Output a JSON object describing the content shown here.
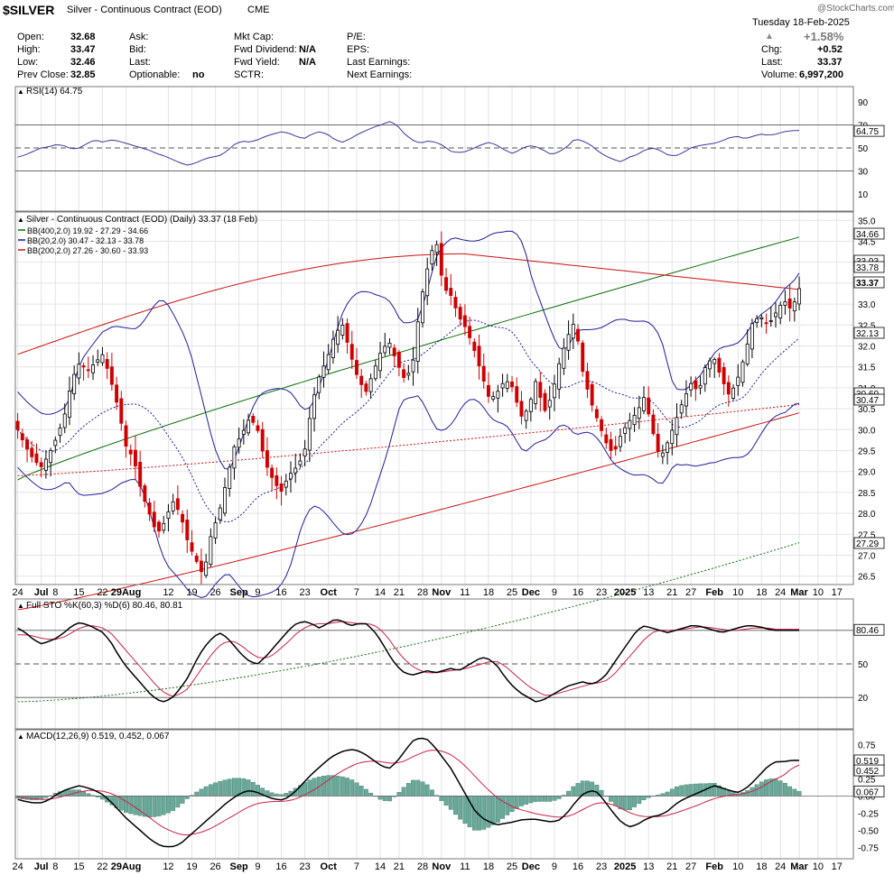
{
  "header": {
    "symbol": "$SILVER",
    "name": "Silver - Continuous Contract (EOD)",
    "exchange": "CME",
    "source": "@StockCharts.com",
    "date": "Tuesday 18-Feb-2025",
    "pct_change": "+1.58%",
    "quote": {
      "open_label": "Open:",
      "open": "32.68",
      "high_label": "High:",
      "high": "33.47",
      "low_label": "Low:",
      "low": "32.46",
      "prevclose_label": "Prev Close:",
      "prevclose": "32.85",
      "ask_label": "Ask:",
      "bid_label": "Bid:",
      "last_label": "Last:",
      "optionable_label": "Optionable:",
      "optionable": "no",
      "mktcap_label": "Mkt Cap:",
      "fwddiv_label": "Fwd Dividend:",
      "fwddiv": "N/A",
      "fwdyield_label": "Fwd Yield:",
      "fwdyield": "N/A",
      "sctr_label": "SCTR:",
      "pe_label": "P/E:",
      "eps_label": "EPS:",
      "lastearn_label": "Last Earnings:",
      "nextearn_label": "Next Earnings:",
      "chg_label": "Chg:",
      "chg": "+0.52",
      "last2_label": "Last:",
      "last2": "33.37",
      "volume_label": "Volume:",
      "volume": "6,997,200"
    }
  },
  "colors": {
    "up": "#000000",
    "down": "#d10000",
    "bb400": "#0a6e0a",
    "bb20": "#1f1f99",
    "bb200": "#cc1111",
    "stoK": "#000000",
    "stoD": "#cc2244",
    "macd": "#000000",
    "signal": "#cc2244",
    "hist": "#6aa99a",
    "grid": "#e4e4ea",
    "dash": "#555555"
  },
  "chart_data": [
    {
      "type": "line",
      "title": "RSI(14) 64.75",
      "ylim": [
        0,
        100
      ],
      "yticks": [
        "10",
        "30",
        "50",
        "70",
        "90"
      ],
      "reference_lines": [
        30,
        50,
        70
      ],
      "current_label": "64.75",
      "series": [
        {
          "name": "RSI(14)",
          "values": [
            42,
            44,
            47,
            50,
            51,
            53,
            52,
            49,
            50,
            54,
            57,
            55,
            57,
            56,
            54,
            52,
            50,
            48,
            45,
            43,
            40,
            37,
            35,
            37,
            40,
            42,
            43,
            47,
            53,
            56,
            55,
            57,
            60,
            62,
            64,
            63,
            60,
            58,
            62,
            64,
            62,
            57,
            55,
            58,
            62,
            65,
            68,
            70,
            73,
            70,
            62,
            57,
            54,
            56,
            55,
            52,
            47,
            46,
            47,
            50,
            53,
            55,
            52,
            48,
            45,
            49,
            52,
            51,
            48,
            44,
            47,
            51,
            58,
            56,
            53,
            47,
            43,
            40,
            38,
            42,
            44,
            48,
            50,
            48,
            44,
            43,
            46,
            50,
            52,
            53,
            54,
            56,
            59,
            60,
            58,
            60,
            62,
            61,
            62,
            64,
            65,
            65
          ]
        }
      ]
    },
    {
      "type": "candlestick",
      "title": "Silver - Continuous Contract (EOD) (Daily) 33.37 (18 Feb)",
      "ylim": [
        26.3,
        35.2
      ],
      "yticks": [
        "26.5",
        "27.0",
        "27.5",
        "28.0",
        "28.5",
        "29.0",
        "29.5",
        "30.0",
        "30.5",
        "31.0",
        "31.5",
        "32.0",
        "32.5",
        "33.0",
        "33.5",
        "34.0",
        "34.5",
        "35.0"
      ],
      "legend": [
        {
          "label": "BB(400,2.0) 19.92 - 27.29 - 34.66",
          "color": "#0a6e0a"
        },
        {
          "label": "BB(20,2.0) 30.47 - 32.13 - 33.78",
          "color": "#1f1f99"
        },
        {
          "label": "BB(200,2.0) 27.26 - 30.60 - 33.93",
          "color": "#cc1111"
        }
      ],
      "right_labels": [
        "34.66",
        "33.93",
        "33.78",
        "33.37",
        "32.13",
        "30.60",
        "30.47",
        "27.29"
      ],
      "close": [
        30.0,
        29.6,
        29.3,
        29.1,
        29.4,
        29.8,
        30.3,
        31.2,
        31.6,
        31.4,
        31.6,
        31.8,
        31.2,
        30.5,
        29.6,
        29.3,
        28.5,
        28.0,
        27.5,
        27.8,
        28.3,
        28.0,
        27.3,
        26.9,
        26.5,
        27.5,
        28.0,
        28.8,
        29.6,
        29.9,
        30.3,
        30.0,
        29.2,
        28.8,
        28.5,
        28.9,
        29.1,
        29.4,
        30.6,
        31.3,
        31.7,
        32.3,
        32.5,
        31.8,
        31.2,
        30.9,
        31.4,
        31.9,
        32.1,
        31.6,
        31.2,
        31.5,
        33.0,
        33.9,
        34.6,
        33.4,
        33.2,
        32.7,
        32.4,
        31.9,
        31.3,
        30.7,
        30.9,
        31.2,
        31.0,
        30.3,
        30.5,
        31.2,
        30.4,
        30.8,
        31.6,
        32.2,
        32.6,
        31.4,
        30.7,
        30.2,
        29.7,
        29.4,
        29.9,
        30.2,
        30.4,
        30.8,
        30.0,
        29.3,
        29.7,
        30.2,
        30.7,
        31.1,
        30.9,
        31.6,
        31.7,
        31.2,
        30.8,
        31.2,
        31.8,
        32.6,
        32.7,
        32.5,
        32.8,
        33.1,
        32.85,
        33.37
      ]
    },
    {
      "type": "line",
      "title": "Full STO %K(60,3) %D(6) 80.46, 80.81",
      "ylim": [
        0,
        100
      ],
      "yticks": [
        "20",
        "50",
        "80"
      ],
      "reference_lines": [
        20,
        50,
        80
      ],
      "right_labels": [
        "80.46"
      ],
      "series": [
        {
          "name": "%K",
          "values": [
            82,
            78,
            72,
            68,
            70,
            73,
            78,
            84,
            87,
            85,
            82,
            78,
            70,
            58,
            48,
            40,
            32,
            24,
            18,
            16,
            20,
            28,
            38,
            52,
            64,
            72,
            78,
            74,
            66,
            58,
            52,
            50,
            56,
            64,
            72,
            80,
            86,
            88,
            86,
            82,
            86,
            90,
            88,
            84,
            86,
            86,
            80,
            70,
            58,
            48,
            42,
            40,
            42,
            44,
            42,
            44,
            46,
            44,
            48,
            52,
            56,
            54,
            48,
            38,
            30,
            24,
            20,
            16,
            18,
            22,
            26,
            30,
            32,
            34,
            32,
            34,
            40,
            50,
            60,
            70,
            80,
            84,
            82,
            80,
            78,
            80,
            82,
            84,
            84,
            82,
            80,
            78,
            80,
            82,
            84,
            84,
            83,
            81,
            80,
            80,
            80,
            80
          ]
        },
        {
          "name": "%D",
          "values": [
            76,
            76,
            75,
            73,
            72,
            72,
            74,
            78,
            82,
            84,
            84,
            82,
            78,
            70,
            62,
            54,
            46,
            38,
            30,
            24,
            21,
            23,
            28,
            38,
            48,
            58,
            66,
            70,
            70,
            66,
            60,
            56,
            55,
            58,
            64,
            70,
            77,
            82,
            85,
            86,
            86,
            87,
            88,
            87,
            86,
            86,
            85,
            80,
            72,
            62,
            54,
            48,
            44,
            42,
            42,
            43,
            44,
            45,
            46,
            48,
            50,
            52,
            52,
            48,
            42,
            36,
            30,
            26,
            22,
            22,
            24,
            26,
            28,
            30,
            32,
            33,
            35,
            40,
            48,
            56,
            64,
            72,
            78,
            80,
            80,
            80,
            81,
            82,
            83,
            83,
            82,
            81,
            80,
            80,
            81,
            82,
            82,
            82,
            81,
            81,
            81,
            81
          ]
        }
      ]
    },
    {
      "type": "line",
      "title": "MACD(12,26,9) 0.519, 0.452, 0.067",
      "ylim": [
        -0.85,
        0.9
      ],
      "yticks": [
        "-0.75",
        "-0.50",
        "-0.25",
        "0.00",
        "0.25",
        "0.50",
        "0.75"
      ],
      "right_labels": [
        "0.519",
        "0.452",
        "0.067"
      ],
      "series": [
        {
          "name": "MACD",
          "values": [
            -0.05,
            -0.08,
            -0.1,
            -0.1,
            -0.06,
            0.02,
            0.08,
            0.12,
            0.15,
            0.12,
            0.08,
            0.02,
            -0.08,
            -0.2,
            -0.32,
            -0.42,
            -0.52,
            -0.62,
            -0.7,
            -0.74,
            -0.74,
            -0.7,
            -0.6,
            -0.5,
            -0.4,
            -0.3,
            -0.2,
            -0.1,
            -0.02,
            0.05,
            0.08,
            0.05,
            0.0,
            -0.04,
            -0.06,
            -0.02,
            0.08,
            0.2,
            0.32,
            0.42,
            0.52,
            0.6,
            0.65,
            0.68,
            0.66,
            0.6,
            0.52,
            0.44,
            0.4,
            0.5,
            0.65,
            0.8,
            0.85,
            0.82,
            0.7,
            0.55,
            0.4,
            0.2,
            0.0,
            -0.2,
            -0.32,
            -0.38,
            -0.42,
            -0.4,
            -0.38,
            -0.35,
            -0.34,
            -0.34,
            -0.36,
            -0.38,
            -0.35,
            -0.25,
            -0.1,
            0.02,
            0.08,
            0.05,
            -0.1,
            -0.25,
            -0.38,
            -0.45,
            -0.42,
            -0.35,
            -0.3,
            -0.28,
            -0.22,
            -0.12,
            -0.05,
            0.0,
            0.05,
            0.1,
            0.15,
            0.12,
            0.08,
            0.05,
            0.1,
            0.2,
            0.32,
            0.44,
            0.5,
            0.5,
            0.52,
            0.519
          ]
        },
        {
          "name": "Signal",
          "values": [
            -0.02,
            -0.03,
            -0.04,
            -0.05,
            -0.05,
            -0.03,
            0.0,
            0.03,
            0.06,
            0.08,
            0.08,
            0.07,
            0.04,
            -0.01,
            -0.08,
            -0.15,
            -0.23,
            -0.31,
            -0.4,
            -0.47,
            -0.52,
            -0.56,
            -0.57,
            -0.55,
            -0.52,
            -0.47,
            -0.41,
            -0.34,
            -0.28,
            -0.21,
            -0.15,
            -0.11,
            -0.09,
            -0.08,
            -0.08,
            -0.07,
            -0.04,
            0.01,
            0.07,
            0.14,
            0.22,
            0.3,
            0.37,
            0.43,
            0.48,
            0.5,
            0.51,
            0.5,
            0.48,
            0.48,
            0.51,
            0.57,
            0.62,
            0.66,
            0.67,
            0.65,
            0.6,
            0.52,
            0.42,
            0.3,
            0.18,
            0.07,
            -0.03,
            -0.1,
            -0.16,
            -0.2,
            -0.23,
            -0.26,
            -0.28,
            -0.3,
            -0.31,
            -0.3,
            -0.26,
            -0.2,
            -0.14,
            -0.1,
            -0.1,
            -0.13,
            -0.18,
            -0.24,
            -0.28,
            -0.3,
            -0.3,
            -0.3,
            -0.28,
            -0.25,
            -0.21,
            -0.17,
            -0.13,
            -0.08,
            -0.04,
            -0.01,
            0.01,
            0.02,
            0.04,
            0.07,
            0.12,
            0.19,
            0.25,
            0.3,
            0.4,
            0.452
          ]
        }
      ]
    }
  ],
  "x_axis": [
    {
      "i": 0,
      "label": "24",
      "bold": false
    },
    {
      "i": 5,
      "label": "Jul",
      "bold": true
    },
    {
      "i": 8,
      "label": "8",
      "bold": false
    },
    {
      "i": 13,
      "label": "15",
      "bold": false
    },
    {
      "i": 18,
      "label": "22",
      "bold": false
    },
    {
      "i": 23,
      "label": "29Aug",
      "bold": true
    },
    {
      "i": 32,
      "label": "12",
      "bold": false
    },
    {
      "i": 37,
      "label": "19",
      "bold": false
    },
    {
      "i": 42,
      "label": "26",
      "bold": false
    },
    {
      "i": 47,
      "label": "Sep",
      "bold": true
    },
    {
      "i": 51,
      "label": "9",
      "bold": false
    },
    {
      "i": 56,
      "label": "16",
      "bold": false
    },
    {
      "i": 61,
      "label": "23",
      "bold": false
    },
    {
      "i": 66,
      "label": "Oct",
      "bold": true
    },
    {
      "i": 72,
      "label": "7",
      "bold": false
    },
    {
      "i": 77,
      "label": "14",
      "bold": false
    },
    {
      "i": 81,
      "label": "21",
      "bold": false
    },
    {
      "i": 86,
      "label": "28",
      "bold": false
    },
    {
      "i": 90,
      "label": "Nov",
      "bold": true
    },
    {
      "i": 95,
      "label": "11",
      "bold": false
    },
    {
      "i": 100,
      "label": "18",
      "bold": false
    },
    {
      "i": 105,
      "label": "25",
      "bold": false
    },
    {
      "i": 109,
      "label": "Dec",
      "bold": true
    },
    {
      "i": 114,
      "label": "9",
      "bold": false
    },
    {
      "i": 119,
      "label": "16",
      "bold": false
    },
    {
      "i": 124,
      "label": "23",
      "bold": false
    },
    {
      "i": 129,
      "label": "2025",
      "bold": true
    },
    {
      "i": 134,
      "label": "13",
      "bold": false
    },
    {
      "i": 139,
      "label": "21",
      "bold": false
    },
    {
      "i": 143,
      "label": "27",
      "bold": false
    },
    {
      "i": 148,
      "label": "Feb",
      "bold": true
    },
    {
      "i": 153,
      "label": "10",
      "bold": false
    },
    {
      "i": 158,
      "label": "18",
      "bold": false
    },
    {
      "i": 162,
      "label": "24",
      "bold": false
    },
    {
      "i": 166,
      "label": "Mar",
      "bold": true
    },
    {
      "i": 170,
      "label": "10",
      "bold": false
    },
    {
      "i": 174,
      "label": "17",
      "bold": false
    }
  ]
}
